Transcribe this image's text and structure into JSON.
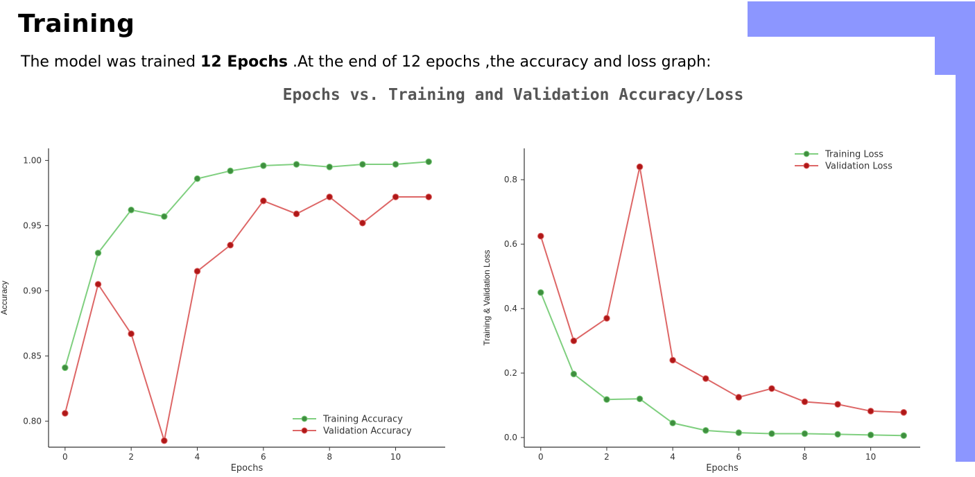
{
  "slide": {
    "title": "Training",
    "text_before": "The model was trained ",
    "text_bold": "12 Epochs",
    "text_after": " .At the end of 12 epochs ,the accuracy and loss graph:"
  },
  "figure_title": "Epochs vs. Training and Validation Accuracy/Loss",
  "colors": {
    "training": "#7fcf7f",
    "training_marker": "#3f8f3f",
    "validation": "#dd6666",
    "validation_marker": "#b01818",
    "accent": "#8c96ff"
  },
  "chart_data": [
    {
      "type": "line",
      "xlabel": "Epochs",
      "ylabel": "Accuracy",
      "xlim": [
        -0.5,
        11.5
      ],
      "ylim": [
        0.78,
        1.005
      ],
      "xticks": [
        0,
        2,
        4,
        6,
        8,
        10
      ],
      "yticks": [
        0.8,
        0.85,
        0.9,
        0.95,
        1.0
      ],
      "xtick_labels": [
        "0",
        "2",
        "4",
        "6",
        "8",
        "10"
      ],
      "ytick_labels": [
        "0.80",
        "0.85",
        "0.90",
        "0.95",
        "1.00"
      ],
      "legend_position": "lower-right",
      "x": [
        0,
        1,
        2,
        3,
        4,
        5,
        6,
        7,
        8,
        9,
        10,
        11
      ],
      "series": [
        {
          "name": "Training Accuracy",
          "key": "training",
          "values": [
            0.841,
            0.929,
            0.962,
            0.957,
            0.986,
            0.992,
            0.996,
            0.997,
            0.995,
            0.997,
            0.997,
            0.999
          ]
        },
        {
          "name": "Validation Accuracy",
          "key": "validation",
          "values": [
            0.806,
            0.905,
            0.867,
            0.785,
            0.915,
            0.935,
            0.969,
            0.959,
            0.972,
            0.952,
            0.972,
            0.972
          ]
        }
      ]
    },
    {
      "type": "line",
      "xlabel": "Epochs",
      "ylabel": "Training & Validation Loss",
      "xlim": [
        -0.5,
        11.5
      ],
      "ylim": [
        -0.03,
        0.88
      ],
      "xticks": [
        0,
        2,
        4,
        6,
        8,
        10
      ],
      "yticks": [
        0.0,
        0.2,
        0.4,
        0.6,
        0.8
      ],
      "xtick_labels": [
        "0",
        "2",
        "4",
        "6",
        "8",
        "10"
      ],
      "ytick_labels": [
        "0.0",
        "0.2",
        "0.4",
        "0.6",
        "0.8"
      ],
      "legend_position": "upper-right",
      "x": [
        0,
        1,
        2,
        3,
        4,
        5,
        6,
        7,
        8,
        9,
        10,
        11
      ],
      "series": [
        {
          "name": "Training Loss",
          "key": "training",
          "values": [
            0.45,
            0.197,
            0.118,
            0.12,
            0.045,
            0.022,
            0.015,
            0.012,
            0.012,
            0.01,
            0.008,
            0.006
          ]
        },
        {
          "name": "Validation Loss",
          "key": "validation",
          "values": [
            0.625,
            0.3,
            0.37,
            0.84,
            0.24,
            0.183,
            0.125,
            0.152,
            0.111,
            0.103,
            0.082,
            0.078
          ]
        }
      ]
    }
  ]
}
